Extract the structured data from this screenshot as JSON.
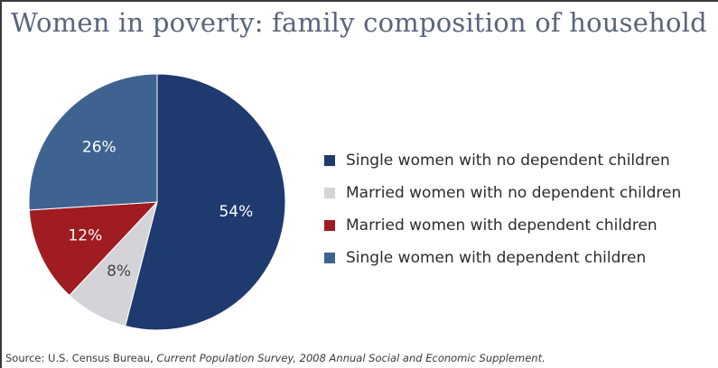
{
  "chart_data": {
    "type": "pie",
    "title": "Women in poverty: family composition of household",
    "start": "12 o'clock, clockwise",
    "legend_position": "right",
    "categories": [
      "Single women with no dependent children",
      "Married women with no dependent children",
      "Married women with dependent children",
      "Single women with dependent children"
    ],
    "values": [
      54,
      8,
      12,
      26
    ],
    "data_labels": [
      "54%",
      "8%",
      "12%",
      "26%"
    ],
    "colors": [
      "#1f3a6e",
      "#d4d4d8",
      "#a01b22",
      "#3e6391"
    ],
    "label_colors": [
      "#ffffff",
      "#444444",
      "#ffffff",
      "#ffffff"
    ]
  },
  "source": {
    "prefix": "Source: U.S. Census Bureau, ",
    "italic": "Current Population Survey, 2008 Annual Social and Economic Supplement."
  }
}
